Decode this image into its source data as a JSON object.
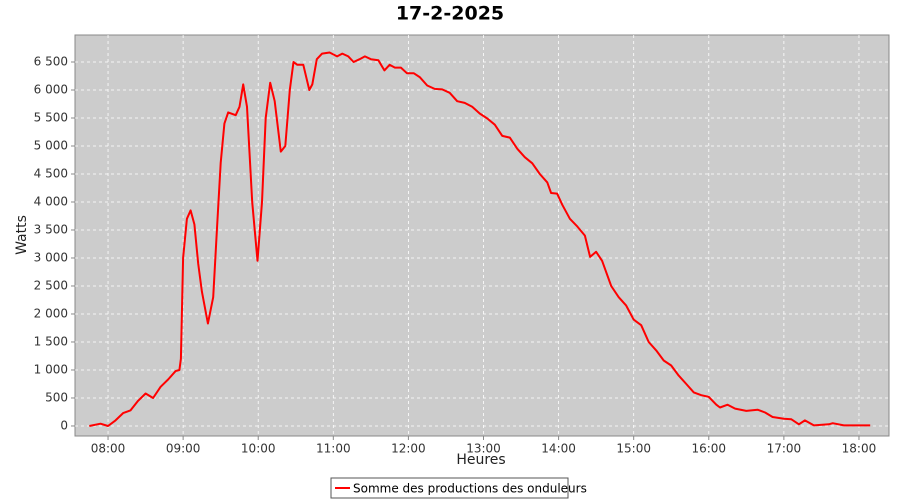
{
  "chart_data": {
    "type": "line",
    "title": "17-2-2025",
    "x_label": "Heures",
    "y_label": "Watts",
    "xlim": [
      7.56,
      18.4
    ],
    "ylim": [
      -179,
      6982
    ],
    "xticks": [
      {
        "value": 8,
        "label": "08:00"
      },
      {
        "value": 9,
        "label": "09:00"
      },
      {
        "value": 10,
        "label": "10:00"
      },
      {
        "value": 11,
        "label": "11:00"
      },
      {
        "value": 12,
        "label": "12:00"
      },
      {
        "value": 13,
        "label": "13:00"
      },
      {
        "value": 14,
        "label": "14:00"
      },
      {
        "value": 15,
        "label": "15:00"
      },
      {
        "value": 16,
        "label": "16:00"
      },
      {
        "value": 17,
        "label": "17:00"
      },
      {
        "value": 18,
        "label": "18:00"
      }
    ],
    "yticks": [
      0,
      500,
      {
        "value": 1000,
        "label": "1 000"
      },
      {
        "value": 1500,
        "label": "1 500"
      },
      {
        "value": 2000,
        "label": "2 000"
      },
      {
        "value": 2500,
        "label": "2 500"
      },
      {
        "value": 3000,
        "label": "3 000"
      },
      {
        "value": 3500,
        "label": "3 500"
      },
      {
        "value": 4000,
        "label": "4 000"
      },
      {
        "value": 4500,
        "label": "4 500"
      },
      {
        "value": 5000,
        "label": "5 000"
      },
      {
        "value": 5500,
        "label": "5 500"
      },
      {
        "value": 6000,
        "label": "6 000"
      },
      {
        "value": 6500,
        "label": "6 500"
      }
    ],
    "grid": true,
    "x": [
      7.75,
      7.9,
      8.0,
      8.1,
      8.2,
      8.3,
      8.4,
      8.5,
      8.6,
      8.7,
      8.8,
      8.9,
      8.95,
      8.97,
      9.0,
      9.05,
      9.1,
      9.15,
      9.2,
      9.25,
      9.33,
      9.4,
      9.45,
      9.5,
      9.55,
      9.6,
      9.7,
      9.75,
      9.8,
      9.85,
      9.92,
      9.99,
      10.05,
      10.1,
      10.16,
      10.22,
      10.3,
      10.36,
      10.42,
      10.47,
      10.52,
      10.6,
      10.68,
      10.72,
      10.78,
      10.85,
      10.95,
      11.05,
      11.12,
      11.2,
      11.27,
      11.35,
      11.42,
      11.5,
      11.6,
      11.68,
      11.75,
      11.82,
      11.9,
      11.98,
      12.07,
      12.15,
      12.25,
      12.35,
      12.45,
      12.55,
      12.65,
      12.75,
      12.85,
      12.95,
      13.05,
      13.15,
      13.25,
      13.35,
      13.45,
      13.55,
      13.65,
      13.75,
      13.85,
      13.9,
      13.98,
      14.05,
      14.15,
      14.25,
      14.35,
      14.42,
      14.5,
      14.58,
      14.7,
      14.8,
      14.9,
      15.0,
      15.1,
      15.2,
      15.3,
      15.4,
      15.5,
      15.6,
      15.7,
      15.8,
      15.9,
      16.0,
      16.1,
      16.15,
      16.25,
      16.35,
      16.5,
      16.65,
      16.75,
      16.85,
      17.0,
      17.1,
      17.2,
      17.28,
      17.4,
      17.6,
      17.65,
      17.8,
      18.0,
      18.15
    ],
    "series": [
      {
        "name": "Somme des productions des onduleurs",
        "color": "#ff0000",
        "values": [
          0,
          40,
          0,
          100,
          230,
          280,
          450,
          580,
          500,
          700,
          830,
          980,
          1000,
          1200,
          3000,
          3700,
          3850,
          3600,
          2900,
          2400,
          1830,
          2300,
          3500,
          4700,
          5400,
          5600,
          5550,
          5700,
          6100,
          5700,
          4000,
          2950,
          4000,
          5500,
          6130,
          5800,
          4900,
          5000,
          6000,
          6500,
          6450,
          6450,
          6000,
          6100,
          6550,
          6650,
          6670,
          6600,
          6650,
          6600,
          6500,
          6550,
          6600,
          6550,
          6530,
          6350,
          6450,
          6400,
          6400,
          6300,
          6300,
          6230,
          6080,
          6020,
          6010,
          5950,
          5800,
          5770,
          5700,
          5580,
          5490,
          5380,
          5180,
          5150,
          4950,
          4800,
          4690,
          4500,
          4350,
          4160,
          4150,
          3950,
          3700,
          3560,
          3400,
          3020,
          3110,
          2950,
          2500,
          2300,
          2150,
          1900,
          1800,
          1500,
          1350,
          1170,
          1080,
          900,
          750,
          600,
          550,
          520,
          380,
          330,
          380,
          310,
          270,
          290,
          240,
          160,
          130,
          120,
          30,
          100,
          10,
          30,
          50,
          10,
          10,
          10
        ]
      }
    ]
  }
}
